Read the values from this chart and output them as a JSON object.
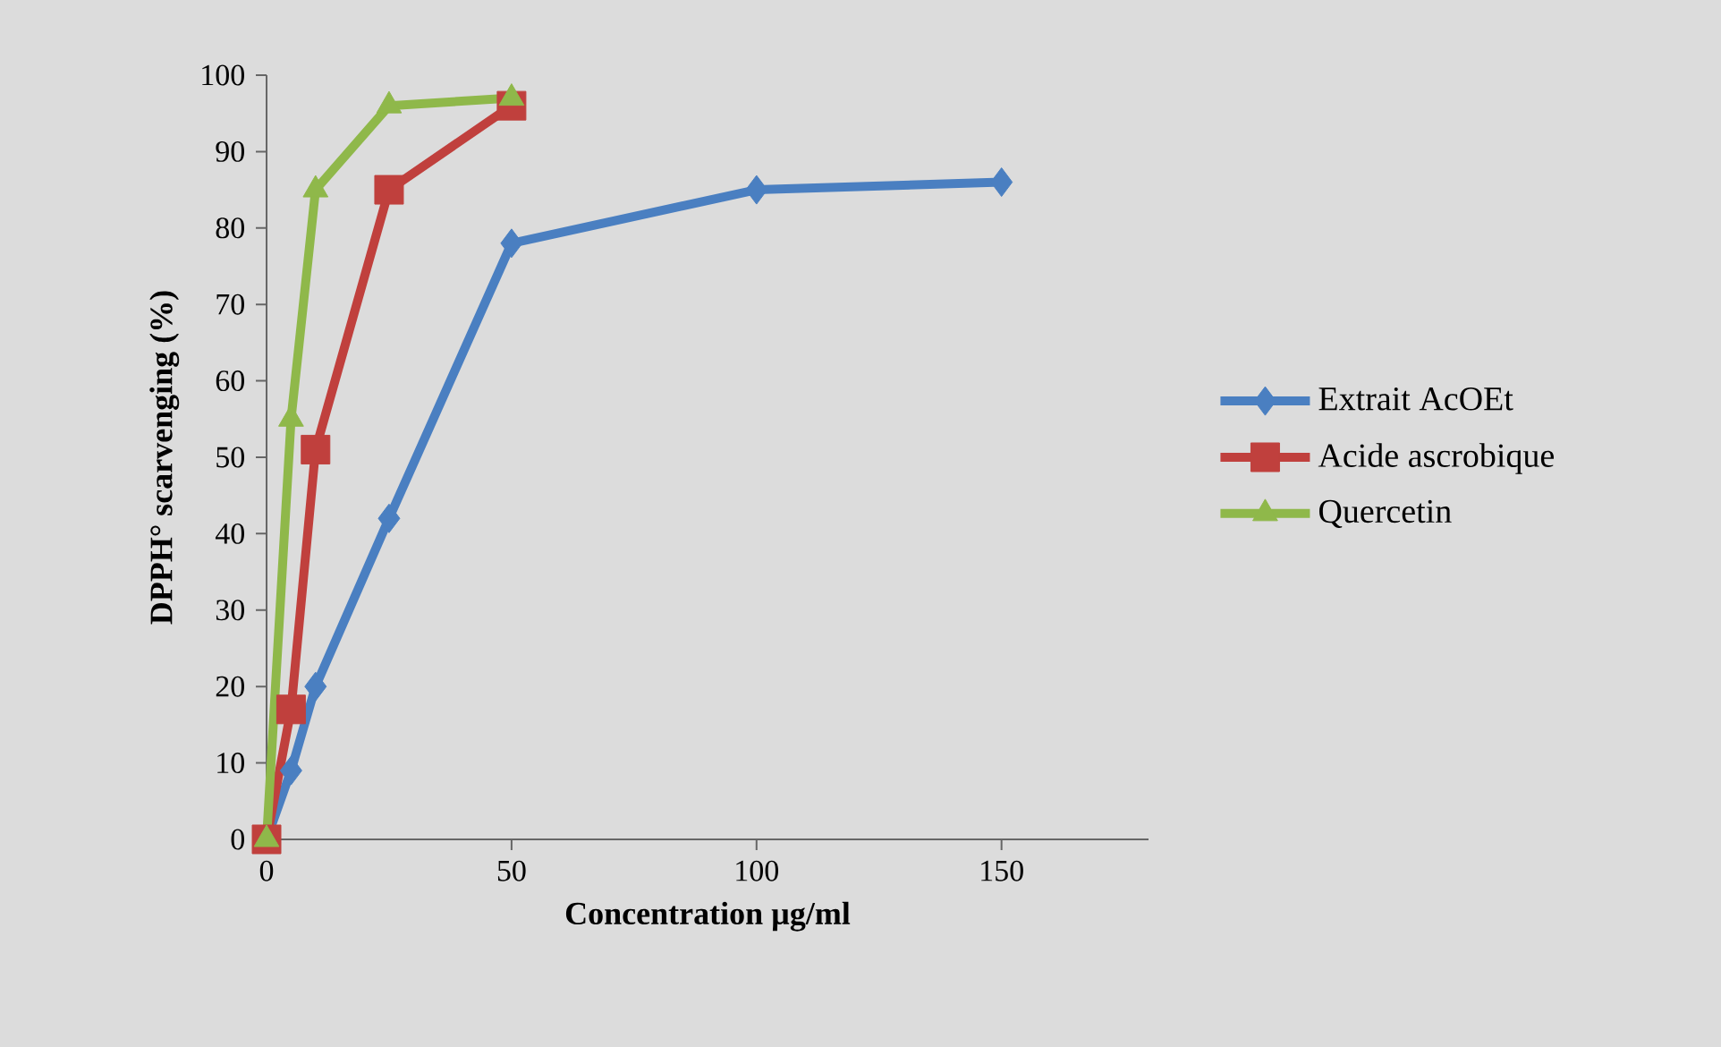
{
  "chart_data": {
    "type": "line",
    "xlabel": "Concentration µg/ml",
    "ylabel": "DPPH° scarvenging (%)",
    "xlim": [
      0,
      180
    ],
    "xticks": [
      0,
      50,
      100,
      150
    ],
    "ylim": [
      0,
      100
    ],
    "yticks": [
      0,
      10,
      20,
      30,
      40,
      50,
      60,
      70,
      80,
      90,
      100
    ],
    "legend": "right",
    "series": [
      {
        "name": "Extrait AcOEt",
        "color": "#4a7fc1",
        "marker": "diamond",
        "x": [
          0,
          5,
          10,
          25,
          50,
          100,
          150
        ],
        "values": [
          0,
          9,
          20,
          42,
          78,
          85,
          86
        ]
      },
      {
        "name": "Acide ascrobique",
        "color": "#c0403d",
        "marker": "square",
        "x": [
          0,
          5,
          10,
          25,
          50
        ],
        "values": [
          0,
          17,
          51,
          85,
          96
        ]
      },
      {
        "name": "Quercetin",
        "color": "#8fb84a",
        "marker": "triangle",
        "x": [
          0,
          5,
          10,
          25,
          50
        ],
        "values": [
          0,
          55,
          85,
          96,
          97
        ]
      }
    ]
  }
}
